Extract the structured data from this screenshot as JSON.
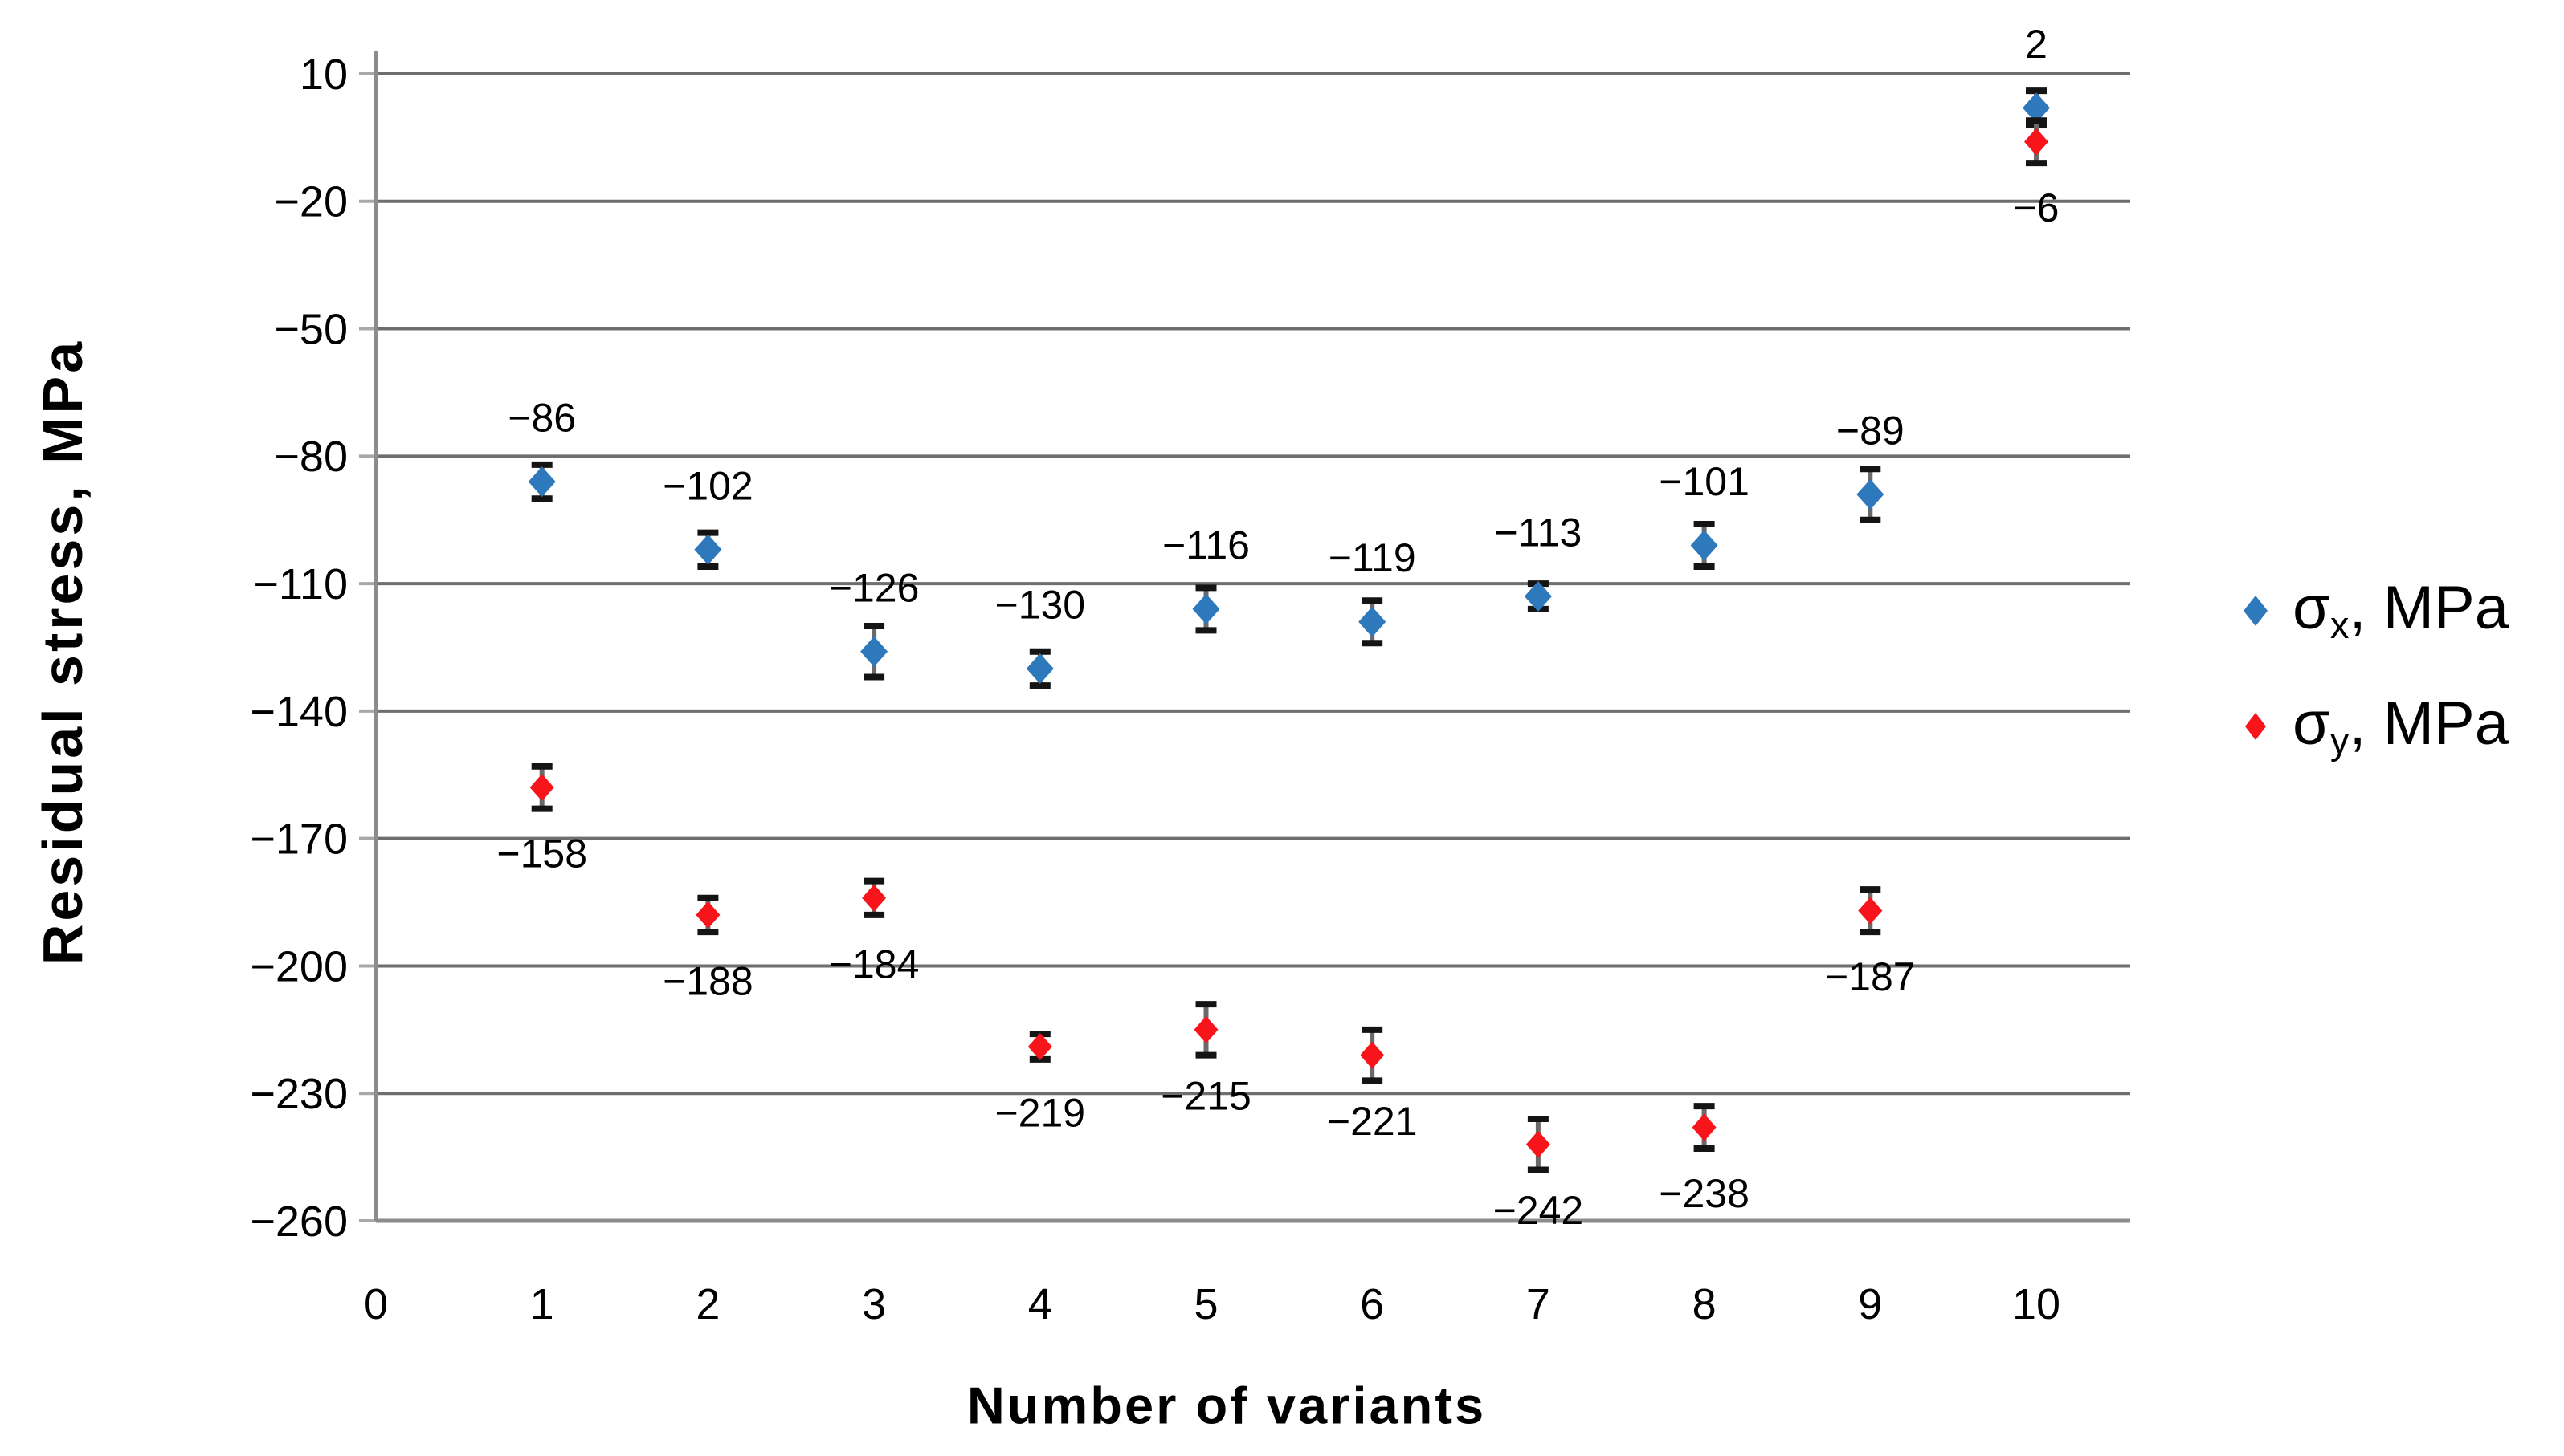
{
  "chart_data": {
    "type": "scatter",
    "title": "",
    "xlabel": "Number of variants",
    "ylabel": "Residual stress, MPa",
    "x": [
      1,
      2,
      3,
      4,
      5,
      6,
      7,
      8,
      9,
      10
    ],
    "series": [
      {
        "name": "σx, MPa",
        "legend": {
          "symbol": "σ",
          "subscript": "x",
          "suffix": ", MPa"
        },
        "color": "#2e79bc",
        "values": [
          -86,
          -102,
          -126,
          -130,
          -116,
          -119,
          -113,
          -101,
          -89,
          2
        ],
        "labels": [
          "−86",
          "−102",
          "−126",
          "−130",
          "−116",
          "−119",
          "−113",
          "−101",
          "−89",
          "2"
        ],
        "errors": [
          4,
          4,
          6,
          4,
          5,
          5,
          3,
          5,
          6,
          4
        ],
        "label_position": "above",
        "marker": "diamond"
      },
      {
        "name": "σy, MPa",
        "legend": {
          "symbol": "σ",
          "subscript": "y",
          "suffix": ", MPa"
        },
        "color": "#f8141b",
        "values": [
          -158,
          -188,
          -184,
          -219,
          -215,
          -221,
          -242,
          -238,
          -187,
          -6
        ],
        "labels": [
          "−158",
          "−188",
          "−184",
          "−219",
          "−215",
          "−221",
          "−242",
          "−238",
          "−187",
          "−6"
        ],
        "errors": [
          5,
          4,
          4,
          3,
          6,
          6,
          6,
          5,
          5,
          5
        ],
        "label_position": "below",
        "marker": "diamond"
      }
    ],
    "x_ticks": [
      "0",
      "1",
      "2",
      "3",
      "4",
      "5",
      "6",
      "7",
      "8",
      "9",
      "10"
    ],
    "y_ticks": [
      10,
      -20,
      -50,
      -80,
      -110,
      -140,
      -170,
      -200,
      -230,
      -260
    ],
    "y_tick_labels": [
      "10",
      "−20",
      "−50",
      "−80",
      "−110",
      "−140",
      "−170",
      "−200",
      "−230",
      "−260"
    ],
    "xlim": [
      0,
      10.56
    ],
    "ylim": [
      -260,
      10
    ],
    "grid": "horizontal-only",
    "legend_position": "right-middle",
    "background": "#ffffff"
  },
  "styles": {
    "gridline_color": "#6e6e6e",
    "axis_color": "#8c8c8c",
    "tick_color": "#a8a8a8",
    "errorbar_line_color": "#6a6a6a",
    "errorbar_cap_color": "#141414",
    "text_color": "#000000",
    "series_blue": "#2e79bc",
    "series_red": "#f8141b"
  }
}
